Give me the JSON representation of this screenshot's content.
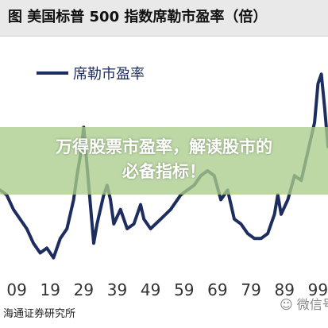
{
  "header": {
    "title": "图  美国标普 500 指数席勒市盈率（倍）"
  },
  "overlay": {
    "line1": "万得股票市盈率，解读股市的",
    "line2": "必备指标！"
  },
  "footer": {
    "source": "海通证券研究所",
    "watermark": "微信号"
  },
  "colors": {
    "series": "#1e2d5f",
    "overlay": "#aacd8c"
  },
  "chart_data": {
    "type": "line",
    "title": "图  美国标普 500 指数席勒市盈率（倍）",
    "xlabel": "",
    "ylabel": "",
    "x_ticks": [
      "09",
      "19",
      "29",
      "39",
      "49",
      "59",
      "69",
      "79",
      "89",
      "99"
    ],
    "xlim": [
      1904,
      2002
    ],
    "ylim": [
      0,
      46
    ],
    "grid": false,
    "legend": "top-left",
    "series": [
      {
        "name": "席勒市盈率",
        "x": [
          1904,
          1906,
          1908,
          1910,
          1912,
          1914,
          1916,
          1918,
          1920,
          1922,
          1924,
          1926,
          1927,
          1928,
          1929,
          1930,
          1931,
          1932,
          1933,
          1934,
          1935,
          1936,
          1937,
          1938,
          1940,
          1942,
          1944,
          1946,
          1947,
          1949,
          1952,
          1955,
          1958,
          1960,
          1962,
          1964,
          1966,
          1968,
          1970,
          1972,
          1974,
          1976,
          1978,
          1980,
          1982,
          1984,
          1986,
          1987,
          1988,
          1990,
          1992,
          1994,
          1996,
          1998,
          1999,
          2000,
          2001,
          2002
        ],
        "values": [
          19,
          18,
          15,
          13,
          11,
          8,
          6,
          7,
          5,
          9,
          11,
          17,
          22,
          26,
          32,
          24,
          16,
          8,
          12,
          15,
          18,
          20,
          17,
          12,
          15,
          11,
          12,
          16,
          13,
          11,
          13,
          15,
          18,
          19,
          20,
          22,
          23,
          22,
          17,
          19,
          13,
          12,
          10,
          9,
          9,
          10,
          14,
          18,
          14,
          17,
          22,
          21,
          27,
          33,
          41,
          43,
          36,
          28
        ]
      }
    ]
  }
}
